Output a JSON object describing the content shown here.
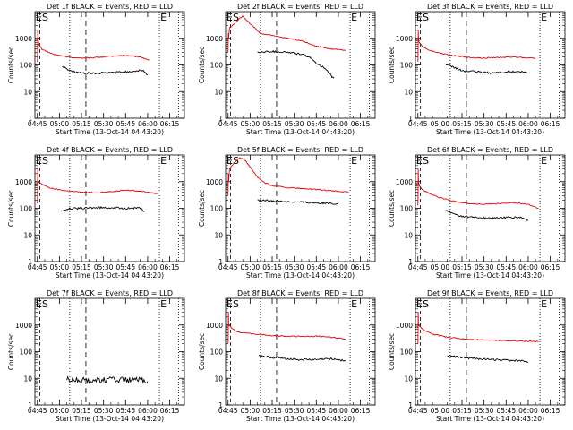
{
  "chart_data": [
    {
      "title": "Det 1f BLACK = Events, RED = LLD",
      "type": "line",
      "markers": [
        "ES",
        "E"
      ],
      "red": [
        [
          0,
          130
        ],
        [
          0.1,
          200
        ],
        [
          0.25,
          2000
        ],
        [
          0.42,
          1000
        ],
        [
          1,
          600
        ],
        [
          3,
          400
        ],
        [
          10,
          260
        ],
        [
          20,
          200
        ],
        [
          30,
          180
        ],
        [
          40,
          190
        ],
        [
          50,
          210
        ],
        [
          60,
          230
        ],
        [
          70,
          200
        ],
        [
          76,
          150
        ]
      ],
      "black": [
        [
          17,
          90
        ],
        [
          20,
          70
        ],
        [
          25,
          55
        ],
        [
          30,
          50
        ],
        [
          40,
          48
        ],
        [
          50,
          52
        ],
        [
          60,
          55
        ],
        [
          68,
          60
        ],
        [
          72,
          62
        ],
        [
          75,
          40
        ]
      ]
    },
    {
      "title": "Det 2f BLACK = Events, RED = LLD",
      "type": "line",
      "markers": [
        "ES",
        "E"
      ],
      "red": [
        [
          0,
          300
        ],
        [
          0.05,
          500
        ],
        [
          0.2,
          1500
        ],
        [
          0.42,
          1000
        ],
        [
          1,
          2500
        ],
        [
          3,
          3000
        ],
        [
          7,
          5000
        ],
        [
          10,
          7000
        ],
        [
          14,
          4000
        ],
        [
          18,
          2500
        ],
        [
          22,
          1500
        ],
        [
          30,
          1300
        ],
        [
          40,
          1000
        ],
        [
          50,
          800
        ],
        [
          60,
          500
        ],
        [
          70,
          400
        ],
        [
          80,
          350
        ]
      ],
      "black": [
        [
          20,
          300
        ],
        [
          30,
          320
        ],
        [
          40,
          300
        ],
        [
          50,
          250
        ],
        [
          55,
          200
        ],
        [
          60,
          120
        ],
        [
          65,
          80
        ],
        [
          70,
          40
        ],
        [
          72,
          30
        ]
      ]
    },
    {
      "title": "Det 3f BLACK = Events, RED = LLD",
      "type": "line",
      "markers": [
        "ES",
        "E"
      ],
      "red": [
        [
          0,
          130
        ],
        [
          0.1,
          200
        ],
        [
          0.25,
          2000
        ],
        [
          0.42,
          1000
        ],
        [
          1,
          700
        ],
        [
          3,
          500
        ],
        [
          8,
          350
        ],
        [
          15,
          280
        ],
        [
          25,
          220
        ],
        [
          35,
          190
        ],
        [
          45,
          180
        ],
        [
          55,
          190
        ],
        [
          65,
          200
        ],
        [
          80,
          180
        ]
      ],
      "black": [
        [
          19,
          100
        ],
        [
          25,
          80
        ],
        [
          30,
          60
        ],
        [
          40,
          55
        ],
        [
          50,
          50
        ],
        [
          60,
          55
        ],
        [
          70,
          55
        ],
        [
          75,
          50
        ]
      ]
    },
    {
      "title": "Det 4f BLACK = Events, RED = LLD",
      "type": "line",
      "markers": [
        "ES",
        "E"
      ],
      "red": [
        [
          0,
          150
        ],
        [
          0.1,
          300
        ],
        [
          0.25,
          3000
        ],
        [
          0.42,
          1000
        ],
        [
          2,
          900
        ],
        [
          5,
          700
        ],
        [
          10,
          550
        ],
        [
          20,
          450
        ],
        [
          30,
          400
        ],
        [
          40,
          380
        ],
        [
          50,
          420
        ],
        [
          60,
          480
        ],
        [
          70,
          440
        ],
        [
          82,
          350
        ]
      ],
      "black": [
        [
          17,
          80
        ],
        [
          20,
          95
        ],
        [
          30,
          100
        ],
        [
          40,
          105
        ],
        [
          50,
          105
        ],
        [
          60,
          100
        ],
        [
          70,
          100
        ],
        [
          73,
          70
        ]
      ]
    },
    {
      "title": "Det 5f BLACK = Events, RED = LLD",
      "type": "line",
      "markers": [
        "ES",
        "E"
      ],
      "red": [
        [
          0,
          300
        ],
        [
          0.05,
          700
        ],
        [
          0.2,
          2000
        ],
        [
          0.42,
          1000
        ],
        [
          1,
          3000
        ],
        [
          4,
          5000
        ],
        [
          8,
          8000
        ],
        [
          12,
          6000
        ],
        [
          16,
          3000
        ],
        [
          20,
          1500
        ],
        [
          25,
          900
        ],
        [
          30,
          700
        ],
        [
          40,
          600
        ],
        [
          50,
          550
        ],
        [
          60,
          500
        ],
        [
          70,
          450
        ],
        [
          82,
          400
        ]
      ],
      "black": [
        [
          20,
          200
        ],
        [
          30,
          190
        ],
        [
          40,
          180
        ],
        [
          50,
          170
        ],
        [
          60,
          160
        ],
        [
          70,
          150
        ],
        [
          75,
          150
        ]
      ]
    },
    {
      "title": "Det 6f BLACK = Events, RED = LLD",
      "type": "line",
      "markers": [
        "ES",
        "E"
      ],
      "red": [
        [
          0,
          130
        ],
        [
          0.1,
          200
        ],
        [
          0.25,
          3000
        ],
        [
          0.42,
          1000
        ],
        [
          1,
          700
        ],
        [
          3,
          500
        ],
        [
          8,
          350
        ],
        [
          15,
          250
        ],
        [
          25,
          180
        ],
        [
          35,
          150
        ],
        [
          45,
          140
        ],
        [
          55,
          150
        ],
        [
          65,
          160
        ],
        [
          75,
          140
        ],
        [
          82,
          100
        ]
      ],
      "black": [
        [
          19,
          80
        ],
        [
          25,
          60
        ],
        [
          30,
          50
        ],
        [
          40,
          45
        ],
        [
          50,
          42
        ],
        [
          60,
          45
        ],
        [
          70,
          45
        ],
        [
          75,
          35
        ]
      ]
    },
    {
      "title": "Det 7f BLACK = Events, RED = LLD",
      "type": "line",
      "markers": [
        "ES",
        "E"
      ],
      "red": [],
      "black": [
        [
          20,
          9
        ],
        [
          30,
          8.5
        ],
        [
          40,
          8.5
        ],
        [
          50,
          9
        ],
        [
          60,
          8.5
        ],
        [
          70,
          8.5
        ],
        [
          75,
          8
        ]
      ]
    },
    {
      "title": "Det 8f BLACK = Events, RED = LLD",
      "type": "line",
      "markers": [
        "ES",
        "E"
      ],
      "red": [
        [
          0,
          200
        ],
        [
          0.1,
          300
        ],
        [
          0.25,
          3000
        ],
        [
          0.42,
          1000
        ],
        [
          2,
          800
        ],
        [
          5,
          600
        ],
        [
          10,
          500
        ],
        [
          20,
          450
        ],
        [
          30,
          400
        ],
        [
          40,
          380
        ],
        [
          50,
          370
        ],
        [
          60,
          380
        ],
        [
          70,
          350
        ],
        [
          80,
          300
        ]
      ],
      "black": [
        [
          21,
          70
        ],
        [
          30,
          60
        ],
        [
          40,
          55
        ],
        [
          50,
          50
        ],
        [
          60,
          50
        ],
        [
          70,
          55
        ],
        [
          75,
          50
        ],
        [
          80,
          45
        ]
      ]
    },
    {
      "title": "Det 9f BLACK = Events, RED = LLD",
      "type": "line",
      "markers": [
        "ES",
        "E"
      ],
      "red": [
        [
          0,
          200
        ],
        [
          0.1,
          300
        ],
        [
          0.25,
          3000
        ],
        [
          0.42,
          1000
        ],
        [
          2,
          800
        ],
        [
          5,
          600
        ],
        [
          10,
          450
        ],
        [
          20,
          350
        ],
        [
          30,
          300
        ],
        [
          40,
          280
        ],
        [
          50,
          270
        ],
        [
          60,
          260
        ],
        [
          70,
          250
        ],
        [
          82,
          240
        ]
      ],
      "black": [
        [
          20,
          70
        ],
        [
          30,
          60
        ],
        [
          40,
          55
        ],
        [
          50,
          50
        ],
        [
          60,
          48
        ],
        [
          70,
          45
        ],
        [
          75,
          42
        ]
      ]
    }
  ],
  "shared": {
    "ylabel": "Counts/sec",
    "xlabel": "Start Time (13-Oct-14 04:43:20)",
    "xtick_labels": [
      "04:45",
      "05:00",
      "05:15",
      "05:30",
      "05:45",
      "06:00",
      "06:15"
    ],
    "ytick_labels": [
      "1",
      "10",
      "100",
      "1000"
    ]
  }
}
